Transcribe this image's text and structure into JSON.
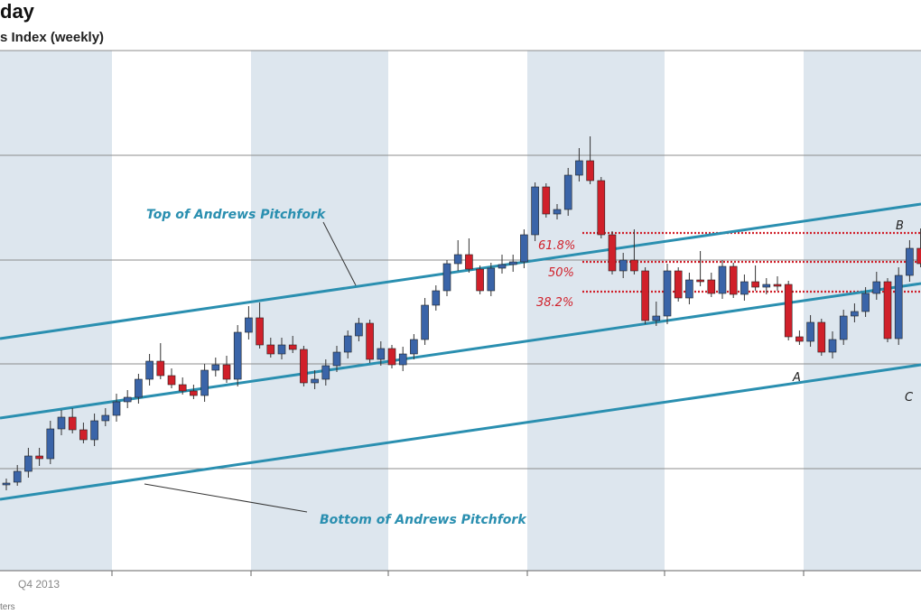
{
  "chart_data": {
    "type": "candlestick",
    "title": "day",
    "subtitle": "s Index (weekly)",
    "x_tick_labels": [
      "Q4 2013"
    ],
    "source": "ters",
    "shaded_bands": true,
    "grid": "horizontal",
    "colors": {
      "up": "#3a64a8",
      "down": "#d0202a",
      "pitchfork": "#2a8fb0",
      "fib": "#d0202a",
      "band": "#dde6ee",
      "grid": "#8c8c8c"
    },
    "annotations": {
      "top_pitchfork": "Top of Andrews Pitchfork",
      "bottom_pitchfork": "Bottom of Andrews Pitchfork",
      "fib_618": "61.8%",
      "fib_50": "50%",
      "fib_382": "38.2%",
      "point_a": "A",
      "point_b": "B",
      "point_c": "C"
    },
    "fib_levels": [
      61.8,
      50,
      38.2
    ],
    "candles": [
      [
        537,
        535,
        539,
        534
      ],
      [
        534,
        522,
        534,
        519
      ],
      [
        522,
        505,
        525,
        500
      ],
      [
        505,
        508,
        512,
        500
      ],
      [
        508,
        475,
        510,
        470
      ],
      [
        475,
        462,
        478,
        458
      ],
      [
        462,
        476,
        470,
        456
      ],
      [
        476,
        487,
        480,
        472
      ],
      [
        487,
        466,
        490,
        462
      ],
      [
        466,
        460,
        468,
        456
      ],
      [
        460,
        445,
        463,
        440
      ],
      [
        445,
        440,
        448,
        436
      ],
      [
        440,
        420,
        443,
        418
      ],
      [
        420,
        400,
        423,
        396
      ],
      [
        400,
        416,
        398,
        384
      ],
      [
        416,
        426,
        420,
        412
      ],
      [
        426,
        433,
        431,
        422
      ],
      [
        433,
        438,
        436,
        430
      ],
      [
        438,
        410,
        441,
        407
      ],
      [
        410,
        404,
        413,
        400
      ],
      [
        404,
        420,
        406,
        398
      ],
      [
        420,
        368,
        424,
        364
      ],
      [
        368,
        352,
        372,
        343
      ],
      [
        352,
        382,
        350,
        339
      ],
      [
        382,
        392,
        386,
        378
      ],
      [
        392,
        382,
        394,
        378
      ],
      [
        382,
        387,
        380,
        376
      ],
      [
        387,
        424,
        390,
        420
      ],
      [
        424,
        420,
        427,
        414
      ],
      [
        420,
        405,
        423,
        402
      ],
      [
        405,
        390,
        408,
        387
      ],
      [
        390,
        372,
        393,
        370
      ],
      [
        372,
        358,
        374,
        356
      ],
      [
        358,
        398,
        361,
        395
      ],
      [
        398,
        386,
        401,
        382
      ],
      [
        386,
        404,
        389,
        398
      ],
      [
        404,
        392,
        407,
        388
      ],
      [
        392,
        376,
        394,
        374
      ],
      [
        376,
        338,
        378,
        334
      ],
      [
        338,
        322,
        340,
        320
      ],
      [
        322,
        292,
        324,
        292
      ],
      [
        292,
        282,
        296,
        270
      ],
      [
        282,
        298,
        286,
        268
      ],
      [
        298,
        322,
        300,
        318
      ],
      [
        322,
        297,
        324,
        295
      ],
      [
        297,
        293,
        299,
        286
      ],
      [
        293,
        290,
        297,
        286
      ],
      [
        290,
        260,
        293,
        258
      ],
      [
        260,
        207,
        263,
        206
      ],
      [
        207,
        237,
        210,
        234
      ],
      [
        237,
        232,
        239,
        230
      ],
      [
        232,
        194,
        235,
        190
      ],
      [
        194,
        178,
        197,
        168
      ],
      [
        178,
        200,
        180,
        155
      ],
      [
        200,
        260,
        203,
        255
      ],
      [
        260,
        300,
        263,
        296
      ],
      [
        300,
        288,
        304,
        284
      ],
      [
        288,
        300,
        290,
        258
      ],
      [
        300,
        355,
        302,
        352
      ],
      [
        355,
        350,
        357,
        338
      ],
      [
        350,
        300,
        355,
        296
      ],
      [
        300,
        330,
        302,
        322
      ],
      [
        330,
        310,
        333,
        306
      ],
      [
        310,
        310,
        313,
        282
      ],
      [
        310,
        325,
        312,
        306
      ],
      [
        325,
        295,
        327,
        292
      ],
      [
        295,
        326,
        297,
        320
      ],
      [
        326,
        312,
        329,
        308
      ],
      [
        312,
        318,
        314,
        298
      ],
      [
        318,
        315,
        322,
        312
      ],
      [
        315,
        315,
        318,
        310
      ],
      [
        315,
        373,
        318,
        369
      ],
      [
        373,
        378,
        375,
        370
      ],
      [
        378,
        357,
        380,
        353
      ],
      [
        357,
        390,
        360,
        387
      ],
      [
        390,
        376,
        393,
        371
      ],
      [
        376,
        350,
        378,
        347
      ],
      [
        350,
        345,
        353,
        340
      ],
      [
        345,
        325,
        347,
        322
      ],
      [
        325,
        312,
        328,
        305
      ],
      [
        312,
        375,
        315,
        370
      ],
      [
        375,
        305,
        378,
        300
      ],
      [
        305,
        275,
        308,
        270
      ],
      [
        275,
        292,
        278,
        257
      ],
      [
        292,
        355,
        295,
        292
      ],
      [
        355,
        420,
        358,
        417
      ],
      [
        420,
        405,
        423,
        402
      ]
    ]
  }
}
